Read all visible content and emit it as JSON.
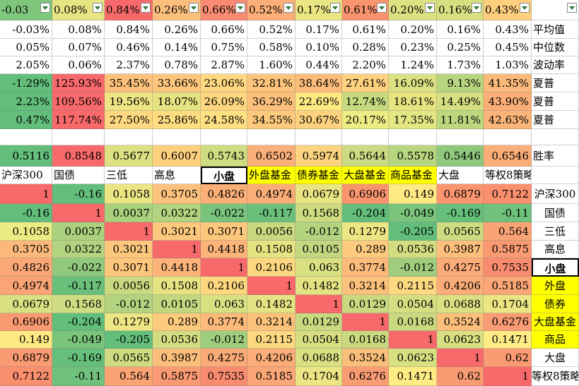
{
  "columns": [
    "沪深300",
    "国债",
    "三低",
    "高息",
    "小盘",
    "外盘基金",
    "债券基金",
    "大盘基金",
    "商品基金",
    "大盘",
    "等权8策略"
  ],
  "filter_row": [
    "-0.03",
    "0.08%",
    "0.84%",
    "0.26%",
    "0.66%",
    "0.52%",
    "0.17%",
    "0.61%",
    "0.20%",
    "0.16%",
    "0.43%",
    ""
  ],
  "stat_rows": [
    {
      "label": "平均值",
      "values": [
        "-0.03%",
        "0.08%",
        "0.84%",
        "0.26%",
        "0.66%",
        "0.52%",
        "0.17%",
        "0.61%",
        "0.20%",
        "0.16%",
        "0.43%"
      ]
    },
    {
      "label": "中位数",
      "values": [
        "0.05%",
        "0.07%",
        "0.46%",
        "0.14%",
        "0.75%",
        "0.58%",
        "0.10%",
        "0.28%",
        "0.23%",
        "0.25%",
        "0.45%"
      ]
    },
    {
      "label": "波动率",
      "values": [
        "2.05%",
        "0.06%",
        "2.37%",
        "0.78%",
        "2.87%",
        "1.60%",
        "0.44%",
        "2.20%",
        "1.24%",
        "1.73%",
        "1.03%"
      ]
    },
    {
      "label": "夏普",
      "values": [
        "-1.29%",
        "125.93%",
        "35.45%",
        "33.66%",
        "23.06%",
        "32.81%",
        "38.64%",
        "27.61%",
        "16.09%",
        "9.13%",
        "41.35%"
      ]
    },
    {
      "label": "夏普",
      "values": [
        "2.23%",
        "109.56%",
        "19.56%",
        "18.07%",
        "26.09%",
        "36.29%",
        "22.69%",
        "12.74%",
        "18.61%",
        "14.49%",
        "43.90%"
      ]
    },
    {
      "label": "夏普",
      "values": [
        "0.47%",
        "117.74%",
        "27.50%",
        "25.86%",
        "24.58%",
        "34.55%",
        "30.67%",
        "20.17%",
        "17.35%",
        "11.81%",
        "42.63%"
      ]
    }
  ],
  "win_rate": {
    "label": "胜率",
    "values": [
      "0.5116",
      "0.8548",
      "0.5677",
      "0.6007",
      "0.5743",
      "0.6502",
      "0.5974",
      "0.5644",
      "0.5578",
      "0.5446",
      "0.6546"
    ]
  },
  "header_labels": [
    "沪深300",
    "国债",
    "三低",
    "高息",
    "小盘",
    "外盘基金",
    "债券基金",
    "大盘基金",
    "商品基金",
    "大盘",
    "等权8策略"
  ],
  "corr_rows": [
    {
      "label": "沪深300",
      "values": [
        "1",
        "-0.16",
        "0.1058",
        "0.3705",
        "0.4826",
        "0.4974",
        "0.0679",
        "0.6906",
        "0.149",
        "0.6879",
        "0.7122"
      ]
    },
    {
      "label": "国债",
      "values": [
        "-0.16",
        "1",
        "0.0037",
        "0.0322",
        "-0.022",
        "-0.117",
        "0.1568",
        "-0.204",
        "-0.049",
        "-0.169",
        "-0.11"
      ]
    },
    {
      "label": "三低",
      "values": [
        "0.1058",
        "0.0037",
        "1",
        "0.3021",
        "0.3071",
        "0.0056",
        "-0.012",
        "0.1279",
        "-0.205",
        "0.0565",
        "0.564"
      ]
    },
    {
      "label": "高息",
      "values": [
        "0.3705",
        "0.0322",
        "0.3021",
        "1",
        "0.4418",
        "0.1508",
        "0.0105",
        "0.289",
        "0.0536",
        "0.3987",
        "0.5875"
      ]
    },
    {
      "label": "小盘",
      "values": [
        "0.4826",
        "-0.022",
        "0.3071",
        "0.4418",
        "1",
        "0.2106",
        "0.063",
        "0.3774",
        "-0.012",
        "0.4275",
        "0.7535"
      ]
    },
    {
      "label": "外盘",
      "values": [
        "0.4974",
        "-0.117",
        "0.0056",
        "0.1508",
        "0.2106",
        "1",
        "0.1482",
        "0.3214",
        "0.2115",
        "0.4206",
        "0.5185"
      ]
    },
    {
      "label": "债券",
      "values": [
        "0.0679",
        "0.1568",
        "-0.012",
        "0.0105",
        "0.063",
        "0.1482",
        "1",
        "0.0129",
        "0.0504",
        "0.0688",
        "0.1704"
      ]
    },
    {
      "label": "大盘基金",
      "values": [
        "0.6906",
        "-0.204",
        "0.1279",
        "0.289",
        "0.3774",
        "0.3214",
        "0.0129",
        "1",
        "0.0168",
        "0.3524",
        "0.6276"
      ]
    },
    {
      "label": "商品",
      "values": [
        "0.149",
        "-0.049",
        "-0.205",
        "0.0536",
        "-0.012",
        "0.2115",
        "0.0504",
        "0.0168",
        "1",
        "0.0623",
        "0.1471"
      ]
    },
    {
      "label": "大盘",
      "values": [
        "0.6879",
        "-0.169",
        "0.0565",
        "0.3987",
        "0.4275",
        "0.4206",
        "0.0688",
        "0.3524",
        "0.0623",
        "1",
        "0.62"
      ]
    },
    {
      "label": "等权8策略",
      "values": [
        "0.7122",
        "-0.11",
        "0.564",
        "0.5875",
        "0.7535",
        "0.5185",
        "0.1704",
        "0.6276",
        "0.1471",
        "0.62",
        "1"
      ]
    }
  ],
  "colors": {
    "scale_red": "#f8696b",
    "scale_yellow": "#ffeb84",
    "scale_green": "#63be7b",
    "highlight_yellow": "#ffff00",
    "filter_arrow": "#2f7a3a"
  },
  "cell_colors": {
    "filter": [
      "#7fc77d",
      "#e6e483",
      "#f8696b",
      "#fcc07c",
      "#f98b72",
      "#fbae78",
      "#eae683",
      "#f9946f",
      "#dde182",
      "#d8df81",
      "#fdcf7e",
      ""
    ],
    "s0": [
      "#ffffff",
      "#ffffff",
      "#ffffff",
      "#ffffff",
      "#ffffff",
      "#ffffff",
      "#ffffff",
      "#ffffff",
      "#ffffff",
      "#ffffff",
      "#ffffff"
    ],
    "s1": [
      "#ffffff",
      "#ffffff",
      "#ffffff",
      "#ffffff",
      "#ffffff",
      "#ffffff",
      "#ffffff",
      "#ffffff",
      "#ffffff",
      "#ffffff",
      "#ffffff"
    ],
    "s2": [
      "#ffffff",
      "#ffffff",
      "#ffffff",
      "#ffffff",
      "#ffffff",
      "#ffffff",
      "#ffffff",
      "#ffffff",
      "#ffffff",
      "#ffffff",
      "#ffffff"
    ],
    "s3": [
      "#63be7b",
      "#f8696b",
      "#fcc27c",
      "#fdc67d",
      "#fed880",
      "#fcc57c",
      "#fcbd7b",
      "#fed17f",
      "#dbe182",
      "#b7d57f",
      "#fbba7a"
    ],
    "s4": [
      "#63be7b",
      "#f8696b",
      "#eee684",
      "#e7e382",
      "#fdd77f",
      "#fcc07c",
      "#ffe983",
      "#c7da80",
      "#e9e482",
      "#d6df81",
      "#fbaf78"
    ],
    "s5": [
      "#63be7b",
      "#f8696b",
      "#fdd880",
      "#fedd81",
      "#fee082",
      "#fcc97d",
      "#fcd27f",
      "#edec84",
      "#e4e583",
      "#bcd87f",
      "#fbb479"
    ],
    "win": [
      "#63be7b",
      "#f8696b",
      "#dce182",
      "#fdd07e",
      "#cfdd81",
      "#fbb079",
      "#fcd47f",
      "#cbdb81",
      "#b8d67f",
      "#8fc87d",
      "#fbae78"
    ],
    "header": [
      "#ffffff",
      "#ffffff",
      "#ffffff",
      "#ffffff",
      "#ffffff",
      "#ffff00",
      "#ffff00",
      "#ffff00",
      "#ffff00",
      "#ffffff",
      "#ffffff"
    ],
    "corr": [
      [
        "#f8696b",
        "#63be7b",
        "#ebe683",
        "#fcc17c",
        "#fbb078",
        "#fbad78",
        "#e9e482",
        "#f9946f",
        "#ffe984",
        "#fa9570",
        "#fa8f6e"
      ],
      [
        "#63be7b",
        "#f8696b",
        "#a9d17e",
        "#b2d37f",
        "#79c47c",
        "#6ac07b",
        "#cedb81",
        "#63be7b",
        "#7ac47c",
        "#66bf7b",
        "#6fc17c"
      ],
      [
        "#edec84",
        "#a9d17e",
        "#f8696b",
        "#fdc77d",
        "#fdc77d",
        "#c9d980",
        "#b2d37f",
        "#eee684",
        "#63be7b",
        "#cedb81",
        "#faa476"
      ],
      [
        "#fcb87a",
        "#b2d37f",
        "#fdc77d",
        "#f8696b",
        "#fcb479",
        "#e6e383",
        "#c2d780",
        "#fdcb7e",
        "#d2dd81",
        "#fcbe7b",
        "#fa9a72"
      ],
      [
        "#fba877",
        "#91c97d",
        "#fdc67d",
        "#fcb479",
        "#f8696b",
        "#fdd880",
        "#d9e082",
        "#fcbb7b",
        "#9fcd7e",
        "#fbab78",
        "#f98c6f"
      ],
      [
        "#fba576",
        "#6ac07b",
        "#c9d980",
        "#e6e383",
        "#fdd880",
        "#f8696b",
        "#e4e383",
        "#fcc27c",
        "#fcd880",
        "#fbac78",
        "#fba676"
      ],
      [
        "#d9e082",
        "#cfdc81",
        "#b2d37f",
        "#c2d780",
        "#d9e082",
        "#e4e383",
        "#f8696b",
        "#c9d980",
        "#d5de81",
        "#dae082",
        "#ebe683"
      ],
      [
        "#fa9a72",
        "#63be7b",
        "#eee684",
        "#fdcb7e",
        "#fcbb7b",
        "#fcc27c",
        "#c9d980",
        "#f8696b",
        "#cad980",
        "#fcbe7b",
        "#fa9c73"
      ],
      [
        "#ffe984",
        "#7ac47c",
        "#63be7b",
        "#d2dd81",
        "#9fcd7e",
        "#fcd880",
        "#d5de81",
        "#cad980",
        "#f8696b",
        "#d8e082",
        "#ffeb84"
      ],
      [
        "#fa9a72",
        "#66bf7b",
        "#cedb81",
        "#fcbe7b",
        "#fbab78",
        "#fbac78",
        "#dae082",
        "#fcbe7b",
        "#d8e082",
        "#f8696b",
        "#fa9b73"
      ],
      [
        "#fa8f6e",
        "#6fc17c",
        "#faa476",
        "#fa9a72",
        "#f98c6f",
        "#fba676",
        "#ebe683",
        "#fa9c73",
        "#ffeb84",
        "#fa9b73",
        "#f8696b"
      ]
    ],
    "corr_label": [
      "#ffffff",
      "#ffffff",
      "#ffffff",
      "#ffffff",
      "#ffffff",
      "#ffff00",
      "#ffff00",
      "#ffff00",
      "#ffff00",
      "#ffffff",
      "#ffffff"
    ]
  }
}
